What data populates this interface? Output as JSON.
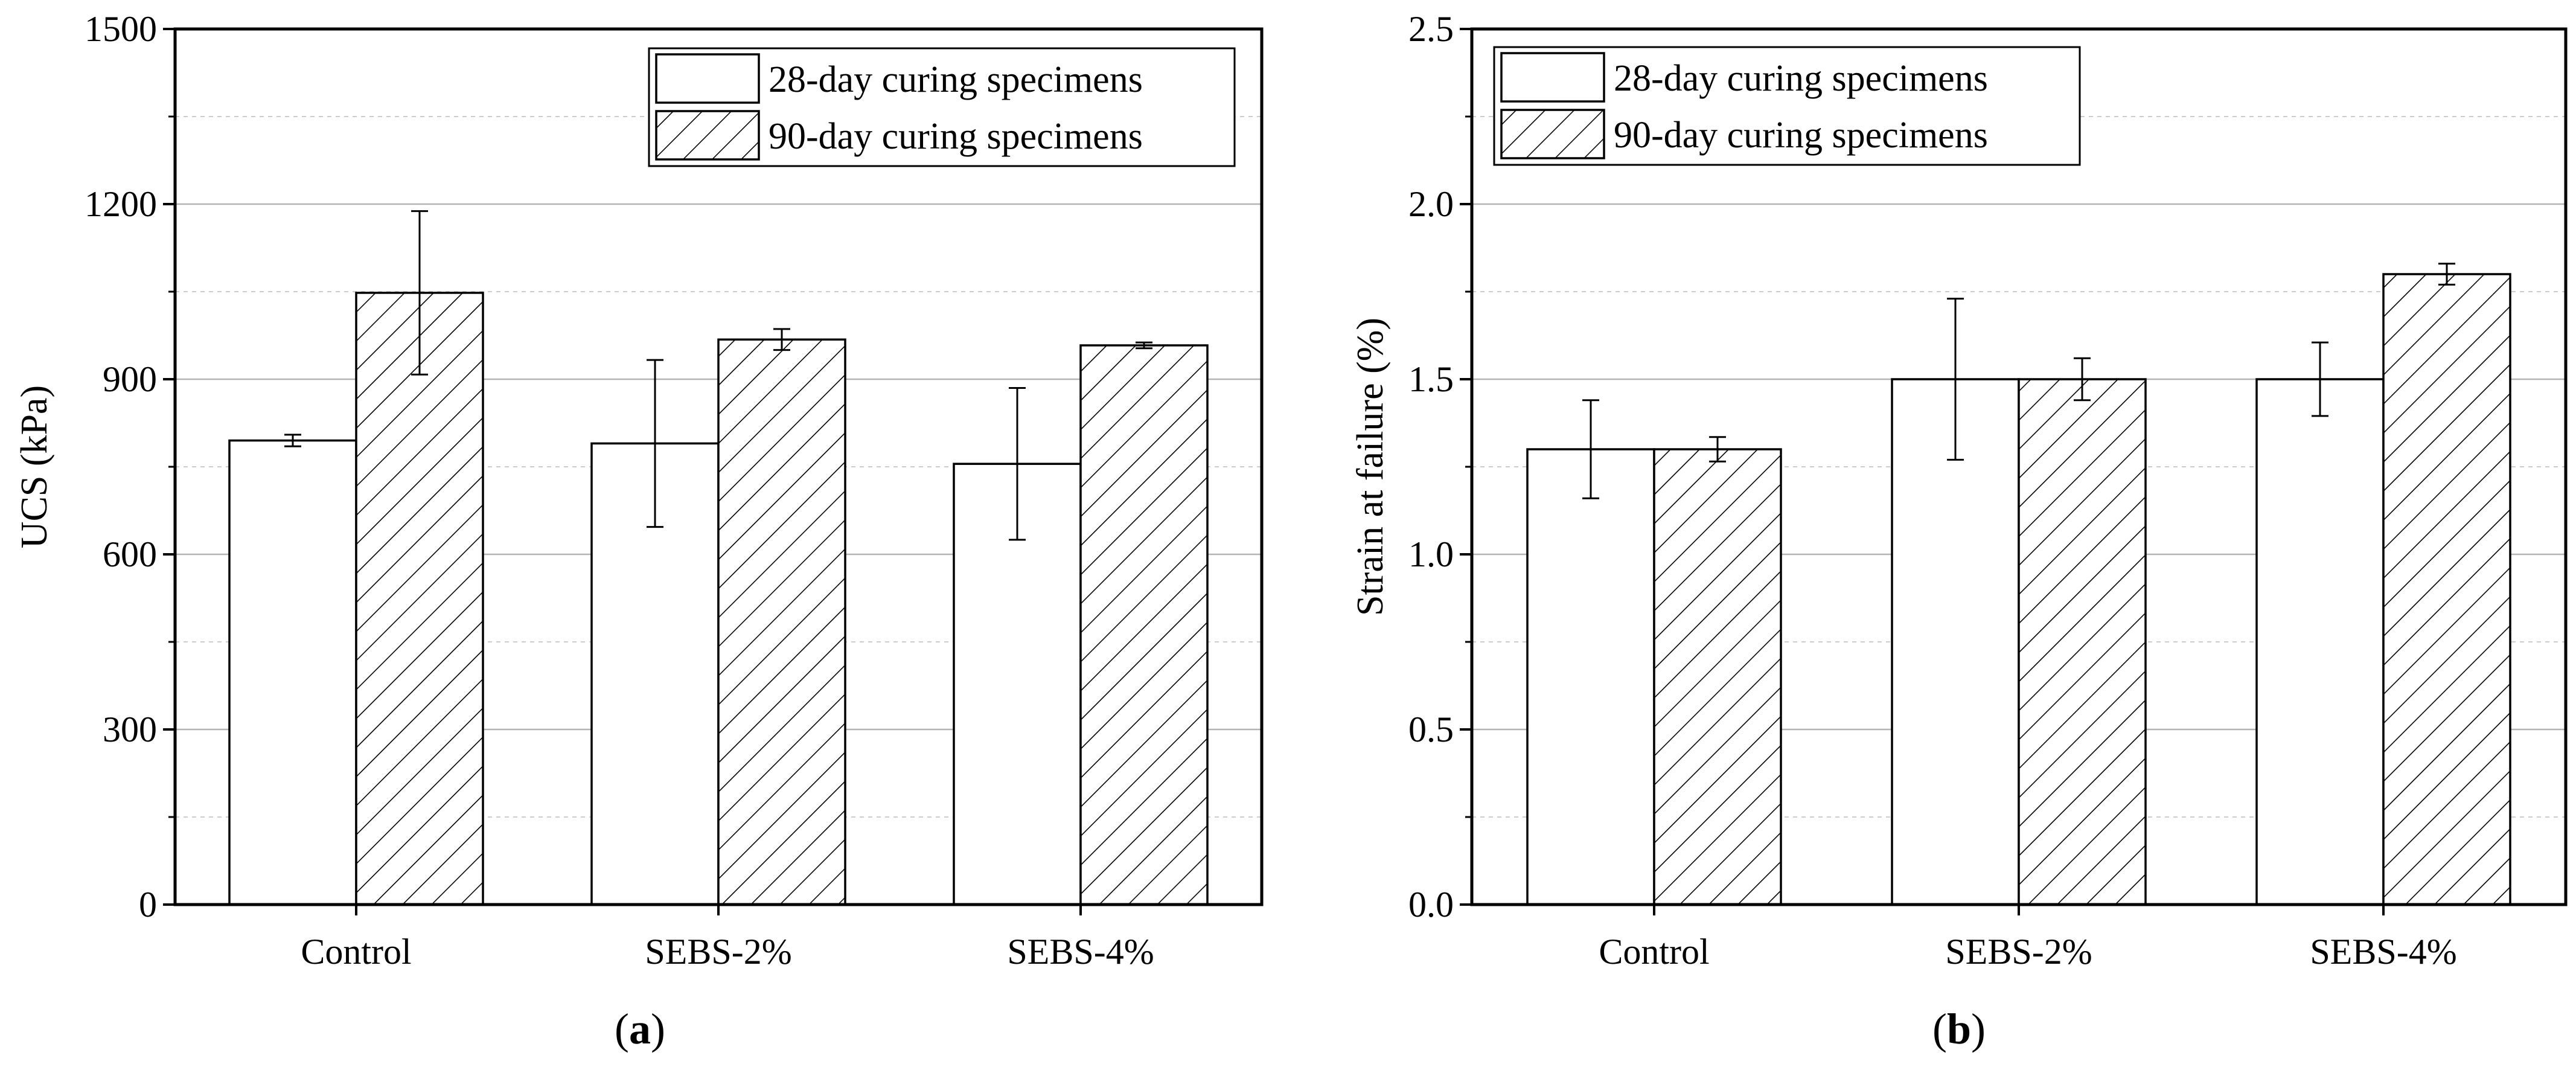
{
  "chart_data": [
    {
      "panel": "a",
      "type": "bar",
      "title": "",
      "xlabel": "",
      "ylabel": "UCS (kPa)",
      "ylim": [
        0,
        1500
      ],
      "yticks": [
        0,
        300,
        600,
        900,
        1200,
        1500
      ],
      "yticks_labels": [
        "0",
        "300",
        "600",
        "900",
        "1200",
        "1500"
      ],
      "grid": true,
      "legend_position": "top-right",
      "categories": [
        "Control",
        "SEBS-2%",
        "SEBS-4%"
      ],
      "series": [
        {
          "name": "28-day curing specimens",
          "pattern": "blank",
          "values": [
            795,
            790,
            755
          ],
          "errors": [
            10,
            143,
            130
          ]
        },
        {
          "name": "90-day curing specimens",
          "pattern": "hatched",
          "values": [
            1048,
            968,
            958
          ],
          "errors": [
            140,
            18,
            5
          ]
        }
      ],
      "panel_label": {
        "open": "(",
        "letter": "a",
        "close": ")"
      }
    },
    {
      "panel": "b",
      "type": "bar",
      "title": "",
      "xlabel": "",
      "ylabel": "Strain at failure (%)",
      "ylim": [
        0,
        2.5
      ],
      "yticks": [
        0,
        0.5,
        1.0,
        1.5,
        2.0,
        2.5
      ],
      "yticks_labels": [
        "0.0",
        "0.5",
        "1.0",
        "1.5",
        "2.0",
        "2.5"
      ],
      "grid": true,
      "legend_position": "top-left",
      "categories": [
        "Control",
        "SEBS-2%",
        "SEBS-4%"
      ],
      "series": [
        {
          "name": "28-day curing specimens",
          "pattern": "blank",
          "values": [
            1.3,
            1.5,
            1.5
          ],
          "errors": [
            0.14,
            0.23,
            0.105
          ]
        },
        {
          "name": "90-day curing specimens",
          "pattern": "hatched",
          "values": [
            1.3,
            1.5,
            1.8
          ],
          "errors": [
            0.035,
            0.06,
            0.03
          ]
        }
      ],
      "panel_label": {
        "open": "(",
        "letter": "b",
        "close": ")"
      }
    }
  ]
}
